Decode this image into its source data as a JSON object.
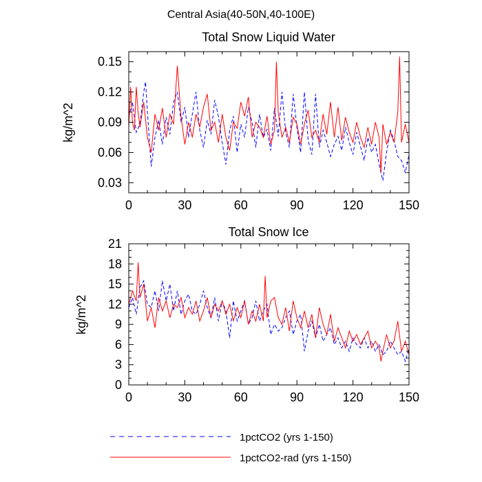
{
  "figure_title": "Central Asia(40-50N,40-100E)",
  "legend": [
    {
      "label": "1pctCO2 (yrs 1-150)",
      "color": "#0000ff",
      "dash": "dashed"
    },
    {
      "label": "1pctCO2-rad (yrs 1-150)",
      "color": "#ff0000",
      "dash": "solid"
    }
  ],
  "chart_data": [
    {
      "type": "line",
      "title": "Total Snow Liquid Water",
      "ylabel": "kg/m^2",
      "xlabel": "",
      "xlim": [
        0,
        150
      ],
      "ylim": [
        0.02,
        0.16
      ],
      "xticks": [
        0,
        30,
        60,
        90,
        120,
        150
      ],
      "xtick_labels": [
        "0",
        "30",
        "60",
        "90",
        "120",
        "150"
      ],
      "yticks": [
        0.03,
        0.06,
        0.09,
        0.12,
        0.15
      ],
      "ytick_labels": [
        "0.03",
        "0.06",
        "0.09",
        "0.12",
        "0.15"
      ],
      "series": [
        {
          "name": "1pctCO2 (yrs 1-150)",
          "color": "#0000ff",
          "dash": "dashed",
          "x": [
            0,
            2,
            4,
            6,
            8,
            9,
            10,
            12,
            14,
            16,
            18,
            20,
            22,
            24,
            26,
            28,
            30,
            32,
            34,
            36,
            38,
            40,
            42,
            44,
            46,
            48,
            50,
            52,
            54,
            56,
            58,
            60,
            62,
            64,
            66,
            68,
            70,
            72,
            74,
            76,
            78,
            80,
            82,
            84,
            86,
            88,
            90,
            92,
            94,
            96,
            98,
            100,
            102,
            104,
            106,
            108,
            110,
            112,
            114,
            116,
            118,
            120,
            122,
            124,
            126,
            128,
            130,
            132,
            134,
            136,
            138,
            140,
            142,
            144,
            146,
            148,
            150
          ],
          "y": [
            0.095,
            0.11,
            0.08,
            0.088,
            0.12,
            0.13,
            0.1,
            0.046,
            0.075,
            0.092,
            0.068,
            0.095,
            0.078,
            0.11,
            0.12,
            0.09,
            0.105,
            0.075,
            0.098,
            0.12,
            0.082,
            0.065,
            0.092,
            0.078,
            0.112,
            0.096,
            0.07,
            0.048,
            0.082,
            0.096,
            0.06,
            0.088,
            0.075,
            0.105,
            0.09,
            0.065,
            0.098,
            0.075,
            0.083,
            0.062,
            0.104,
            0.076,
            0.12,
            0.08,
            0.065,
            0.118,
            0.085,
            0.06,
            0.12,
            0.072,
            0.058,
            0.118,
            0.065,
            0.082,
            0.07,
            0.056,
            0.068,
            0.076,
            0.062,
            0.085,
            0.07,
            0.058,
            0.08,
            0.066,
            0.052,
            0.075,
            0.06,
            0.068,
            0.048,
            0.032,
            0.06,
            0.082,
            0.072,
            0.056,
            0.052,
            0.04,
            0.058
          ]
        },
        {
          "name": "1pctCO2-rad (yrs 1-150)",
          "color": "#ff0000",
          "dash": "solid",
          "x": [
            0,
            1,
            2,
            3,
            4,
            5,
            6,
            8,
            10,
            12,
            14,
            16,
            18,
            20,
            22,
            24,
            26,
            28,
            30,
            32,
            34,
            36,
            38,
            40,
            42,
            44,
            46,
            48,
            50,
            52,
            54,
            56,
            58,
            60,
            62,
            64,
            66,
            68,
            70,
            72,
            74,
            76,
            78,
            79,
            80,
            82,
            84,
            86,
            88,
            90,
            92,
            94,
            96,
            98,
            100,
            102,
            104,
            106,
            108,
            110,
            112,
            114,
            116,
            118,
            120,
            122,
            124,
            126,
            128,
            130,
            132,
            134,
            135,
            136,
            138,
            140,
            142,
            144,
            145,
            146,
            148,
            150
          ],
          "y": [
            0.085,
            0.125,
            0.09,
            0.082,
            0.125,
            0.1,
            0.085,
            0.11,
            0.075,
            0.06,
            0.098,
            0.082,
            0.104,
            0.075,
            0.098,
            0.088,
            0.146,
            0.095,
            0.068,
            0.09,
            0.075,
            0.098,
            0.085,
            0.105,
            0.118,
            0.082,
            0.09,
            0.07,
            0.098,
            0.075,
            0.062,
            0.09,
            0.084,
            0.11,
            0.096,
            0.115,
            0.075,
            0.09,
            0.085,
            0.075,
            0.096,
            0.068,
            0.082,
            0.15,
            0.1,
            0.075,
            0.085,
            0.07,
            0.095,
            0.088,
            0.068,
            0.088,
            0.102,
            0.075,
            0.082,
            0.07,
            0.098,
            0.078,
            0.11,
            0.075,
            0.105,
            0.072,
            0.095,
            0.08,
            0.07,
            0.09,
            0.075,
            0.065,
            0.085,
            0.068,
            0.09,
            0.075,
            0.04,
            0.088,
            0.068,
            0.08,
            0.07,
            0.1,
            0.155,
            0.07,
            0.088,
            0.07
          ]
        }
      ]
    },
    {
      "type": "line",
      "title": "Total Snow Ice",
      "ylabel": "kg/m^2",
      "xlabel": "",
      "xlim": [
        0,
        150
      ],
      "ylim": [
        0,
        21
      ],
      "xticks": [
        0,
        30,
        60,
        90,
        120,
        150
      ],
      "xtick_labels": [
        "0",
        "30",
        "60",
        "90",
        "120",
        "150"
      ],
      "yticks": [
        0,
        3,
        6,
        9,
        12,
        15,
        18,
        21
      ],
      "ytick_labels": [
        "0",
        "3",
        "6",
        "9",
        "12",
        "15",
        "18",
        "21"
      ],
      "series": [
        {
          "name": "1pctCO2 (yrs 1-150)",
          "color": "#0000ff",
          "dash": "dashed",
          "x": [
            0,
            2,
            4,
            6,
            8,
            10,
            12,
            14,
            16,
            18,
            20,
            22,
            24,
            26,
            28,
            30,
            32,
            34,
            36,
            38,
            40,
            42,
            44,
            46,
            48,
            50,
            52,
            54,
            56,
            58,
            60,
            62,
            64,
            66,
            68,
            70,
            72,
            74,
            76,
            78,
            80,
            82,
            84,
            86,
            88,
            90,
            92,
            94,
            96,
            98,
            100,
            102,
            104,
            106,
            108,
            110,
            112,
            114,
            116,
            118,
            120,
            122,
            124,
            126,
            128,
            130,
            132,
            134,
            136,
            138,
            140,
            142,
            144,
            146,
            148,
            150
          ],
          "y": [
            11.5,
            13,
            10.5,
            14.5,
            15.5,
            12,
            11.5,
            14,
            11,
            15.5,
            12.5,
            15,
            11,
            14,
            10.5,
            12.5,
            13.5,
            11,
            10.5,
            12,
            14,
            11.5,
            10,
            13,
            9.5,
            12.5,
            11,
            7,
            12.5,
            9.5,
            11,
            12.5,
            9,
            10,
            12.5,
            9.5,
            11,
            12,
            7.5,
            9,
            8,
            8.5,
            10,
            11,
            7.5,
            9.5,
            10.5,
            5,
            8,
            9.5,
            7,
            9,
            6.5,
            7.5,
            8.5,
            6,
            7,
            5.5,
            6.5,
            5,
            7,
            6,
            5.5,
            7,
            5.5,
            6.5,
            5,
            6,
            4.5,
            5,
            6.5,
            5.5,
            4.5,
            5,
            3.5,
            5.5
          ]
        },
        {
          "name": "1pctCO2-rad (yrs 1-150)",
          "color": "#ff0000",
          "dash": "solid",
          "x": [
            0,
            2,
            4,
            5,
            6,
            8,
            10,
            12,
            14,
            16,
            18,
            20,
            22,
            24,
            26,
            28,
            30,
            32,
            34,
            36,
            38,
            40,
            42,
            44,
            46,
            48,
            50,
            52,
            54,
            56,
            58,
            60,
            62,
            64,
            66,
            68,
            70,
            72,
            73,
            74,
            76,
            78,
            80,
            82,
            84,
            86,
            88,
            90,
            92,
            94,
            96,
            98,
            100,
            102,
            104,
            106,
            108,
            110,
            112,
            114,
            116,
            118,
            120,
            122,
            124,
            126,
            128,
            130,
            132,
            134,
            135,
            136,
            138,
            140,
            142,
            144,
            146,
            148,
            150
          ],
          "y": [
            12,
            14,
            12.5,
            18.2,
            13,
            15,
            9.5,
            11.5,
            8.5,
            13,
            11,
            12.5,
            10,
            12,
            11.5,
            13,
            10,
            11.5,
            10.5,
            12.5,
            9.5,
            11,
            13,
            10,
            12,
            11,
            12.5,
            10.5,
            12,
            9.5,
            11.5,
            10,
            12.5,
            9,
            11,
            9.5,
            12,
            9.5,
            16.2,
            10,
            12.5,
            13,
            10,
            9,
            11.5,
            8,
            12.5,
            10,
            8.5,
            11,
            8.5,
            10.5,
            7,
            11.5,
            9,
            7.5,
            10.5,
            6.5,
            8.5,
            7,
            5.5,
            8,
            6.5,
            7.5,
            6,
            7,
            8,
            5.5,
            6.5,
            5.5,
            3.5,
            5,
            7.5,
            5.5,
            6.5,
            9.5,
            5,
            6.5,
            4.5
          ]
        }
      ]
    }
  ]
}
